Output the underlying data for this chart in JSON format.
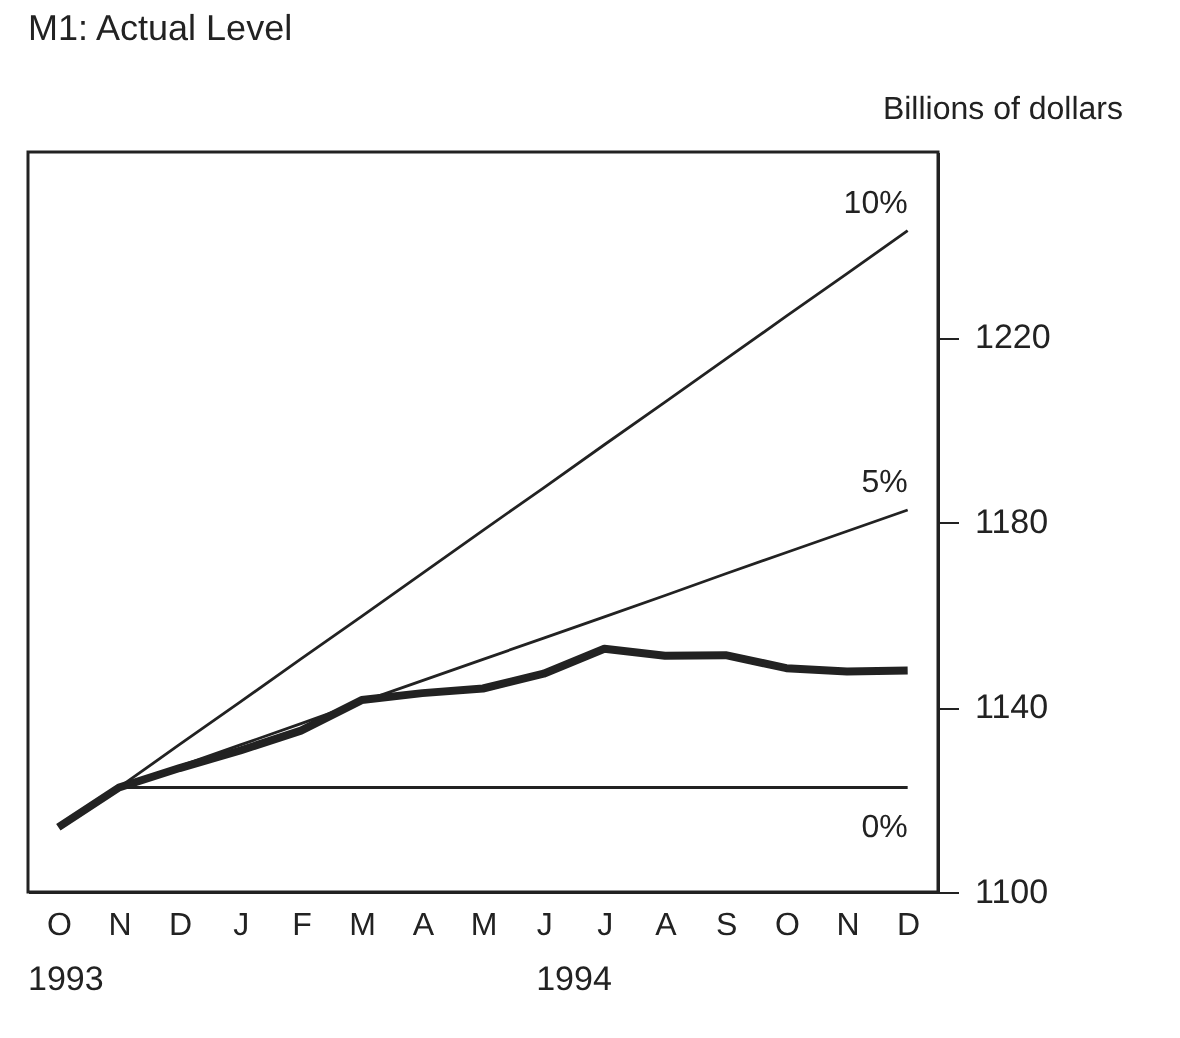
{
  "chart_data": {
    "type": "line",
    "title": "M1: Actual Level",
    "ylabel": "Billions of dollars",
    "categories": [
      "O",
      "N",
      "D",
      "J",
      "F",
      "M",
      "A",
      "M",
      "J",
      "J",
      "A",
      "S",
      "O",
      "N",
      "D"
    ],
    "series": [
      {
        "color": "#222222",
        "values": [
          1114,
          1122.6,
          1126.8,
          1130.6,
          1134.9,
          1141.5,
          1143,
          1144,
          1147.2,
          1152.6,
          1151.1,
          1151.2,
          1148.4,
          1147.7,
          1147.9
        ]
      },
      {
        "name": "10%",
        "color": "#222222",
        "values": [
          null,
          1122.6,
          1131.9,
          1141.1,
          1150.4,
          1159.6,
          1168.9,
          1178.2,
          1187.4,
          1196.7,
          1205.9,
          1215.2,
          1224.5,
          1233.7,
          1243
        ]
      },
      {
        "name": "5%",
        "color": "#222222",
        "values": [
          null,
          1122.6,
          1127.2,
          1131.8,
          1136.4,
          1141.1,
          1145.7,
          1150.3,
          1154.9,
          1159.5,
          1164.1,
          1168.8,
          1173.4,
          1178,
          1182.6
        ]
      },
      {
        "name": "0%",
        "color": "#222222",
        "values": [
          null,
          1122.6,
          1122.6,
          1122.6,
          1122.6,
          1122.6,
          1122.6,
          1122.6,
          1122.6,
          1122.6,
          1122.6,
          1122.6,
          1122.6,
          1122.6,
          1122.6
        ]
      }
    ],
    "ylim": [
      1100,
      1260
    ],
    "yticks": [
      1100,
      1140,
      1180,
      1220
    ],
    "annotations": [
      "1993",
      "1994"
    ],
    "grid": false,
    "legend": false,
    "marker": "none",
    "line_style": "solid"
  }
}
